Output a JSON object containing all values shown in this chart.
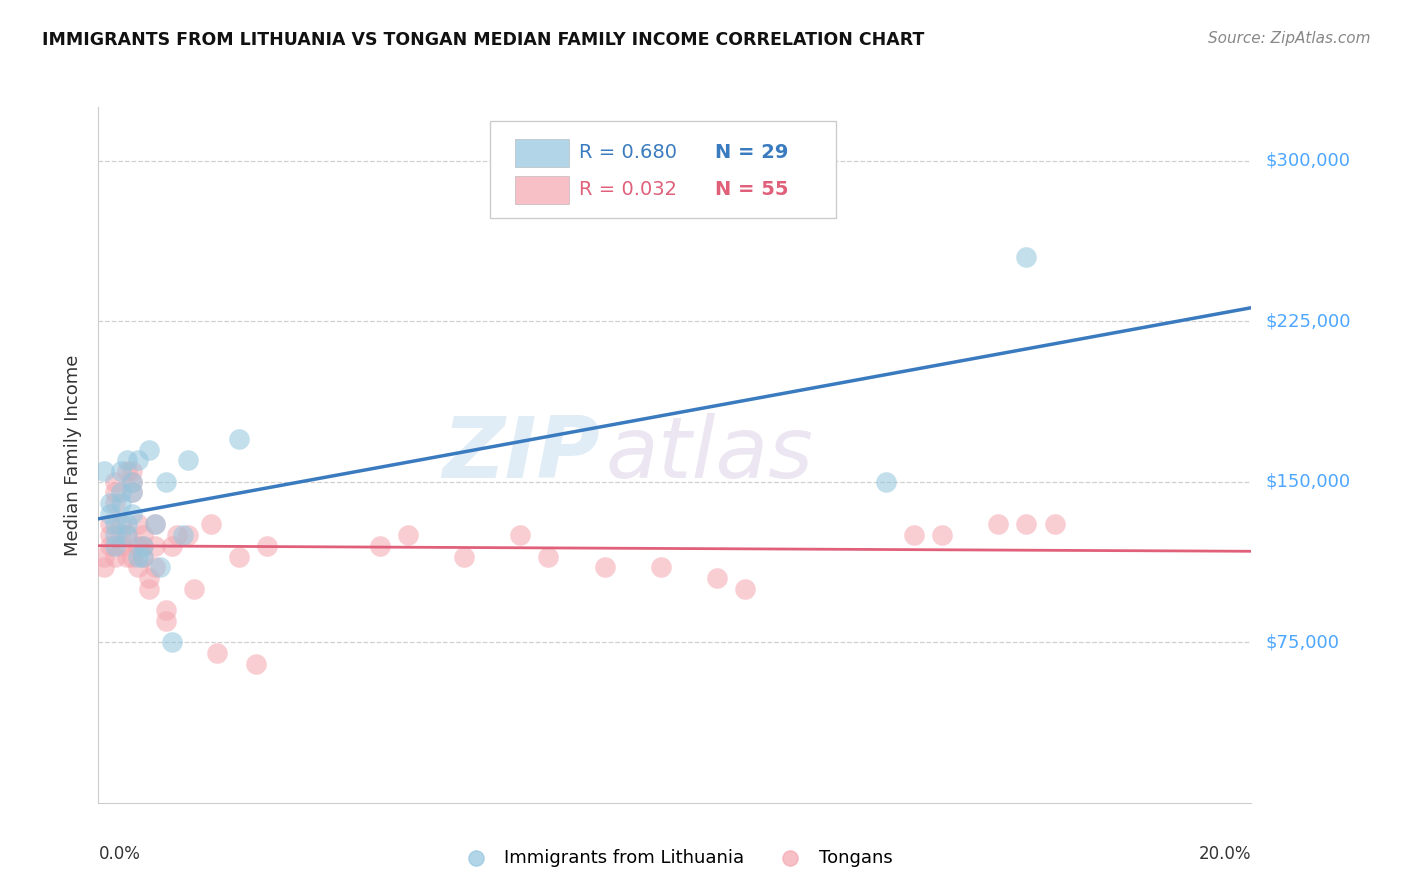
{
  "title": "IMMIGRANTS FROM LITHUANIA VS TONGAN MEDIAN FAMILY INCOME CORRELATION CHART",
  "source": "Source: ZipAtlas.com",
  "ylabel": "Median Family Income",
  "ytick_labels": [
    "$300,000",
    "$225,000",
    "$150,000",
    "$75,000"
  ],
  "ytick_values": [
    300000,
    225000,
    150000,
    75000
  ],
  "ylim": [
    0,
    325000
  ],
  "xlim": [
    0.0,
    0.205
  ],
  "legend_blue_r": "R = 0.680",
  "legend_blue_n": "N = 29",
  "legend_pink_r": "R = 0.032",
  "legend_pink_n": "N = 55",
  "blue_color": "#92c5de",
  "pink_color": "#f4a6b0",
  "blue_line_color": "#3a7bbf",
  "pink_line_color": "#e0607a",
  "watermark_zip": "ZIP",
  "watermark_atlas": "atlas",
  "blue_scatter_label": "Immigrants from Lithuania",
  "pink_scatter_label": "Tongans",
  "blue_points_x": [
    0.001,
    0.002,
    0.002,
    0.003,
    0.003,
    0.003,
    0.004,
    0.004,
    0.004,
    0.005,
    0.005,
    0.005,
    0.006,
    0.006,
    0.006,
    0.007,
    0.007,
    0.008,
    0.008,
    0.009,
    0.01,
    0.011,
    0.012,
    0.013,
    0.015,
    0.016,
    0.025,
    0.14,
    0.165
  ],
  "blue_points_y": [
    155000,
    135000,
    140000,
    130000,
    125000,
    120000,
    145000,
    155000,
    140000,
    160000,
    130000,
    125000,
    135000,
    150000,
    145000,
    115000,
    160000,
    120000,
    115000,
    165000,
    130000,
    110000,
    150000,
    75000,
    125000,
    160000,
    170000,
    150000,
    255000
  ],
  "pink_points_x": [
    0.001,
    0.001,
    0.002,
    0.002,
    0.002,
    0.003,
    0.003,
    0.003,
    0.003,
    0.004,
    0.004,
    0.004,
    0.005,
    0.005,
    0.005,
    0.006,
    0.006,
    0.006,
    0.006,
    0.007,
    0.007,
    0.007,
    0.008,
    0.008,
    0.008,
    0.009,
    0.009,
    0.01,
    0.01,
    0.01,
    0.012,
    0.012,
    0.013,
    0.014,
    0.016,
    0.017,
    0.02,
    0.021,
    0.025,
    0.028,
    0.03,
    0.05,
    0.055,
    0.065,
    0.075,
    0.08,
    0.09,
    0.1,
    0.11,
    0.115,
    0.145,
    0.15,
    0.16,
    0.165,
    0.17
  ],
  "pink_points_y": [
    115000,
    110000,
    125000,
    120000,
    130000,
    140000,
    145000,
    150000,
    115000,
    125000,
    130000,
    120000,
    115000,
    125000,
    155000,
    155000,
    150000,
    145000,
    115000,
    130000,
    120000,
    110000,
    125000,
    120000,
    115000,
    100000,
    105000,
    130000,
    120000,
    110000,
    90000,
    85000,
    120000,
    125000,
    125000,
    100000,
    130000,
    70000,
    115000,
    65000,
    120000,
    120000,
    125000,
    115000,
    125000,
    115000,
    110000,
    110000,
    105000,
    100000,
    125000,
    125000,
    130000,
    130000,
    130000
  ]
}
